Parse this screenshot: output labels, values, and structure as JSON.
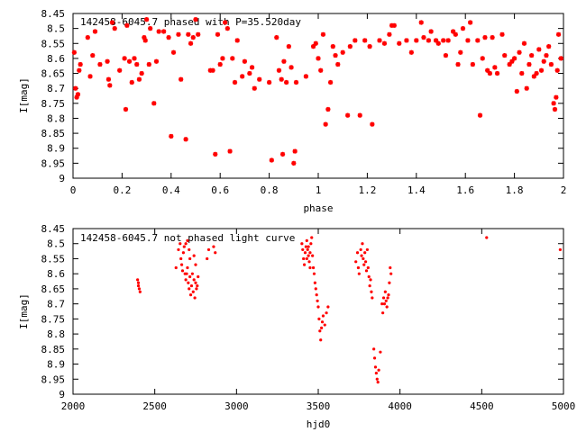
{
  "colors": {
    "marker": "#ff0000",
    "axis": "#000000",
    "background": "#ffffff"
  },
  "chart_data": [
    {
      "type": "scatter",
      "title": "142458-6045.7 phased with P=35.520day",
      "xlabel": "phase",
      "ylabel": "I[mag]",
      "xlim": [
        0,
        2
      ],
      "ylim": [
        8.45,
        9
      ],
      "y_inverted": true,
      "grid": false,
      "marker": "asterisk",
      "x_ticks": [
        "0",
        "0.2",
        "0.4",
        "0.6",
        "0.8",
        "1",
        "1.2",
        "1.4",
        "1.6",
        "1.8",
        "2"
      ],
      "y_ticks": [
        "8.45",
        "8.5",
        "8.55",
        "8.6",
        "8.65",
        "8.7",
        "8.75",
        "8.8",
        "8.85",
        "8.9",
        "8.95",
        "9"
      ],
      "points": [
        [
          0.005,
          8.58
        ],
        [
          0.01,
          8.7
        ],
        [
          0.015,
          8.73
        ],
        [
          0.02,
          8.72
        ],
        [
          0.025,
          8.64
        ],
        [
          0.03,
          8.62
        ],
        [
          0.06,
          8.53
        ],
        [
          0.07,
          8.66
        ],
        [
          0.08,
          8.59
        ],
        [
          0.09,
          8.51
        ],
        [
          0.11,
          8.62
        ],
        [
          0.14,
          8.61
        ],
        [
          0.145,
          8.67
        ],
        [
          0.15,
          8.69
        ],
        [
          0.16,
          8.48
        ],
        [
          0.17,
          8.5
        ],
        [
          0.19,
          8.64
        ],
        [
          0.21,
          8.6
        ],
        [
          0.215,
          8.77
        ],
        [
          0.22,
          8.49
        ],
        [
          0.23,
          8.61
        ],
        [
          0.24,
          8.68
        ],
        [
          0.25,
          8.6
        ],
        [
          0.26,
          8.62
        ],
        [
          0.27,
          8.67
        ],
        [
          0.28,
          8.65
        ],
        [
          0.29,
          8.53
        ],
        [
          0.295,
          8.54
        ],
        [
          0.3,
          8.47
        ],
        [
          0.31,
          8.62
        ],
        [
          0.315,
          8.5
        ],
        [
          0.33,
          8.75
        ],
        [
          0.34,
          8.61
        ],
        [
          0.35,
          8.51
        ],
        [
          0.37,
          8.51
        ],
        [
          0.39,
          8.53
        ],
        [
          0.4,
          8.86
        ],
        [
          0.41,
          8.58
        ],
        [
          0.43,
          8.52
        ],
        [
          0.44,
          8.67
        ],
        [
          0.46,
          8.87
        ],
        [
          0.47,
          8.52
        ],
        [
          0.48,
          8.55
        ],
        [
          0.49,
          8.53
        ],
        [
          0.5,
          8.47
        ],
        [
          0.51,
          8.52
        ],
        [
          0.56,
          8.64
        ],
        [
          0.57,
          8.64
        ],
        [
          0.58,
          8.92
        ],
        [
          0.59,
          8.52
        ],
        [
          0.6,
          8.62
        ],
        [
          0.61,
          8.6
        ],
        [
          0.62,
          8.48
        ],
        [
          0.63,
          8.5
        ],
        [
          0.64,
          8.91
        ],
        [
          0.65,
          8.6
        ],
        [
          0.66,
          8.68
        ],
        [
          0.67,
          8.54
        ],
        [
          0.69,
          8.66
        ],
        [
          0.7,
          8.61
        ],
        [
          0.72,
          8.65
        ],
        [
          0.73,
          8.63
        ],
        [
          0.74,
          8.7
        ],
        [
          0.76,
          8.67
        ],
        [
          0.8,
          8.68
        ],
        [
          0.81,
          8.94
        ],
        [
          0.83,
          8.53
        ],
        [
          0.84,
          8.64
        ],
        [
          0.85,
          8.67
        ],
        [
          0.855,
          8.92
        ],
        [
          0.86,
          8.61
        ],
        [
          0.87,
          8.68
        ],
        [
          0.88,
          8.56
        ],
        [
          0.89,
          8.63
        ],
        [
          0.9,
          8.95
        ],
        [
          0.905,
          8.91
        ],
        [
          0.91,
          8.68
        ],
        [
          0.95,
          8.66
        ],
        [
          0.98,
          8.56
        ],
        [
          0.99,
          8.55
        ],
        [
          1.0,
          8.6
        ],
        [
          1.01,
          8.64
        ],
        [
          1.02,
          8.52
        ],
        [
          1.03,
          8.82
        ],
        [
          1.04,
          8.77
        ],
        [
          1.05,
          8.68
        ],
        [
          1.06,
          8.56
        ],
        [
          1.07,
          8.59
        ],
        [
          1.08,
          8.62
        ],
        [
          1.1,
          8.58
        ],
        [
          1.12,
          8.79
        ],
        [
          1.13,
          8.56
        ],
        [
          1.15,
          8.54
        ],
        [
          1.17,
          8.79
        ],
        [
          1.19,
          8.54
        ],
        [
          1.21,
          8.56
        ],
        [
          1.22,
          8.82
        ],
        [
          1.25,
          8.54
        ],
        [
          1.27,
          8.55
        ],
        [
          1.29,
          8.52
        ],
        [
          1.3,
          8.49
        ],
        [
          1.31,
          8.49
        ],
        [
          1.33,
          8.55
        ],
        [
          1.36,
          8.54
        ],
        [
          1.38,
          8.58
        ],
        [
          1.4,
          8.54
        ],
        [
          1.42,
          8.48
        ],
        [
          1.43,
          8.53
        ],
        [
          1.45,
          8.54
        ],
        [
          1.46,
          8.51
        ],
        [
          1.48,
          8.54
        ],
        [
          1.49,
          8.55
        ],
        [
          1.51,
          8.54
        ],
        [
          1.52,
          8.59
        ],
        [
          1.53,
          8.54
        ],
        [
          1.55,
          8.51
        ],
        [
          1.56,
          8.52
        ],
        [
          1.57,
          8.62
        ],
        [
          1.58,
          8.58
        ],
        [
          1.59,
          8.5
        ],
        [
          1.61,
          8.54
        ],
        [
          1.62,
          8.48
        ],
        [
          1.63,
          8.62
        ],
        [
          1.65,
          8.54
        ],
        [
          1.66,
          8.79
        ],
        [
          1.67,
          8.6
        ],
        [
          1.68,
          8.53
        ],
        [
          1.69,
          8.64
        ],
        [
          1.7,
          8.65
        ],
        [
          1.71,
          8.53
        ],
        [
          1.72,
          8.63
        ],
        [
          1.73,
          8.65
        ],
        [
          1.75,
          8.52
        ],
        [
          1.76,
          8.59
        ],
        [
          1.78,
          8.62
        ],
        [
          1.79,
          8.61
        ],
        [
          1.8,
          8.6
        ],
        [
          1.81,
          8.71
        ],
        [
          1.82,
          8.58
        ],
        [
          1.83,
          8.65
        ],
        [
          1.84,
          8.55
        ],
        [
          1.85,
          8.7
        ],
        [
          1.86,
          8.62
        ],
        [
          1.87,
          8.59
        ],
        [
          1.88,
          8.66
        ],
        [
          1.89,
          8.65
        ],
        [
          1.9,
          8.57
        ],
        [
          1.91,
          8.64
        ],
        [
          1.92,
          8.61
        ],
        [
          1.93,
          8.59
        ],
        [
          1.94,
          8.56
        ],
        [
          1.95,
          8.62
        ],
        [
          1.96,
          8.75
        ],
        [
          1.965,
          8.77
        ],
        [
          1.97,
          8.73
        ],
        [
          1.975,
          8.64
        ],
        [
          1.98,
          8.52
        ],
        [
          1.99,
          8.6
        ]
      ]
    },
    {
      "type": "scatter",
      "title": "142458-6045.7 not phased light curve",
      "xlabel": "hjd0",
      "ylabel": "I[mag]",
      "xlim": [
        2000,
        5000
      ],
      "ylim": [
        8.45,
        9
      ],
      "y_inverted": true,
      "grid": false,
      "marker": "dot",
      "x_ticks": [
        "2000",
        "2500",
        "3000",
        "3500",
        "4000",
        "4500",
        "5000"
      ],
      "y_ticks": [
        "8.45",
        "8.5",
        "8.55",
        "8.6",
        "8.65",
        "8.7",
        "8.75",
        "8.8",
        "8.85",
        "8.9",
        "8.95",
        "9"
      ],
      "points": [
        [
          2395,
          8.62
        ],
        [
          2400,
          8.63
        ],
        [
          2405,
          8.65
        ],
        [
          2410,
          8.66
        ],
        [
          2400,
          8.64
        ],
        [
          2630,
          8.58
        ],
        [
          2645,
          8.52
        ],
        [
          2655,
          8.5
        ],
        [
          2660,
          8.55
        ],
        [
          2665,
          8.57
        ],
        [
          2670,
          8.59
        ],
        [
          2675,
          8.53
        ],
        [
          2680,
          8.51
        ],
        [
          2685,
          8.6
        ],
        [
          2690,
          8.62
        ],
        [
          2695,
          8.6
        ],
        [
          2700,
          8.58
        ],
        [
          2705,
          8.63
        ],
        [
          2710,
          8.65
        ],
        [
          2715,
          8.61
        ],
        [
          2720,
          8.67
        ],
        [
          2725,
          8.64
        ],
        [
          2730,
          8.6
        ],
        [
          2735,
          8.66
        ],
        [
          2740,
          8.62
        ],
        [
          2745,
          8.68
        ],
        [
          2750,
          8.63
        ],
        [
          2755,
          8.65
        ],
        [
          2760,
          8.64
        ],
        [
          2765,
          8.61
        ],
        [
          2710,
          8.52
        ],
        [
          2715,
          8.55
        ],
        [
          2690,
          8.5
        ],
        [
          2700,
          8.49
        ],
        [
          2740,
          8.54
        ],
        [
          2750,
          8.57
        ],
        [
          2820,
          8.55
        ],
        [
          2830,
          8.52
        ],
        [
          2860,
          8.51
        ],
        [
          2870,
          8.53
        ],
        [
          3400,
          8.5
        ],
        [
          3405,
          8.52
        ],
        [
          3410,
          8.55
        ],
        [
          3415,
          8.57
        ],
        [
          3420,
          8.53
        ],
        [
          3425,
          8.51
        ],
        [
          3430,
          8.49
        ],
        [
          3435,
          8.52
        ],
        [
          3440,
          8.54
        ],
        [
          3445,
          8.56
        ],
        [
          3450,
          8.53
        ],
        [
          3455,
          8.5
        ],
        [
          3460,
          8.48
        ],
        [
          3465,
          8.54
        ],
        [
          3470,
          8.58
        ],
        [
          3475,
          8.6
        ],
        [
          3480,
          8.63
        ],
        [
          3485,
          8.65
        ],
        [
          3490,
          8.67
        ],
        [
          3495,
          8.69
        ],
        [
          3500,
          8.71
        ],
        [
          3505,
          8.75
        ],
        [
          3510,
          8.79
        ],
        [
          3515,
          8.82
        ],
        [
          3520,
          8.78
        ],
        [
          3525,
          8.76
        ],
        [
          3530,
          8.74
        ],
        [
          3540,
          8.77
        ],
        [
          3550,
          8.73
        ],
        [
          3560,
          8.71
        ],
        [
          3430,
          8.55
        ],
        [
          3440,
          8.51
        ],
        [
          3450,
          8.58
        ],
        [
          3730,
          8.56
        ],
        [
          3740,
          8.53
        ],
        [
          3745,
          8.58
        ],
        [
          3750,
          8.6
        ],
        [
          3760,
          8.52
        ],
        [
          3765,
          8.54
        ],
        [
          3770,
          8.5
        ],
        [
          3775,
          8.55
        ],
        [
          3780,
          8.57
        ],
        [
          3785,
          8.53
        ],
        [
          3790,
          8.56
        ],
        [
          3795,
          8.59
        ],
        [
          3800,
          8.52
        ],
        [
          3805,
          8.58
        ],
        [
          3810,
          8.61
        ],
        [
          3815,
          8.64
        ],
        [
          3820,
          8.62
        ],
        [
          3825,
          8.66
        ],
        [
          3830,
          8.68
        ],
        [
          3840,
          8.85
        ],
        [
          3845,
          8.88
        ],
        [
          3850,
          8.91
        ],
        [
          3855,
          8.93
        ],
        [
          3860,
          8.95
        ],
        [
          3865,
          8.96
        ],
        [
          3870,
          8.92
        ],
        [
          3880,
          8.86
        ],
        [
          3890,
          8.7
        ],
        [
          3895,
          8.73
        ],
        [
          3900,
          8.68
        ],
        [
          3905,
          8.7
        ],
        [
          3910,
          8.66
        ],
        [
          3915,
          8.69
        ],
        [
          3920,
          8.71
        ],
        [
          3925,
          8.68
        ],
        [
          3930,
          8.67
        ],
        [
          3935,
          8.63
        ],
        [
          3940,
          8.58
        ],
        [
          3945,
          8.6
        ],
        [
          4530,
          8.48
        ],
        [
          4980,
          8.52
        ]
      ]
    }
  ]
}
